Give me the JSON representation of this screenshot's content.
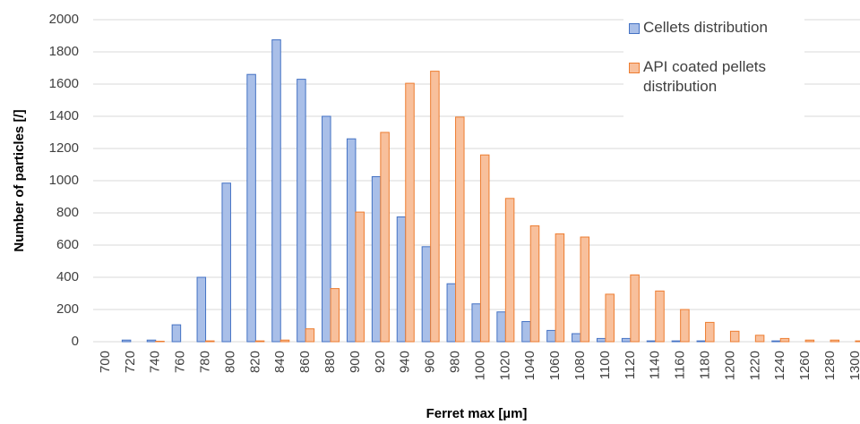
{
  "chart_data": {
    "type": "bar",
    "x_label": "Ferret max [µm]",
    "y_label": "Number of particles [/]",
    "categories": [
      "700",
      "720",
      "740",
      "760",
      "780",
      "800",
      "820",
      "840",
      "860",
      "880",
      "900",
      "920",
      "940",
      "960",
      "980",
      "1000",
      "1020",
      "1040",
      "1060",
      "1080",
      "1100",
      "1120",
      "1140",
      "1160",
      "1180",
      "1200",
      "1220",
      "1240",
      "1260",
      "1280",
      "1300"
    ],
    "series": [
      {
        "name": "Cellets distribution",
        "color": "#a9bfe8",
        "values": [
          0,
          10,
          10,
          105,
          400,
          985,
          1660,
          1875,
          1630,
          1400,
          1260,
          1025,
          775,
          590,
          360,
          235,
          185,
          125,
          70,
          50,
          20,
          20,
          5,
          5,
          5,
          0,
          0,
          5,
          0,
          0,
          0
        ]
      },
      {
        "name": "API coated pellets distribution",
        "color": "#f8c09c",
        "values": [
          0,
          0,
          3,
          0,
          5,
          0,
          5,
          10,
          80,
          330,
          805,
          1300,
          1605,
          1680,
          1395,
          1160,
          890,
          720,
          670,
          650,
          295,
          415,
          315,
          200,
          120,
          65,
          40,
          20,
          10,
          10,
          5
        ]
      }
    ],
    "ylim": [
      0,
      2000
    ],
    "yticks": [
      0,
      200,
      400,
      600,
      800,
      1000,
      1200,
      1400,
      1600,
      1800,
      2000
    ],
    "grid": true,
    "legend": "top-right"
  }
}
